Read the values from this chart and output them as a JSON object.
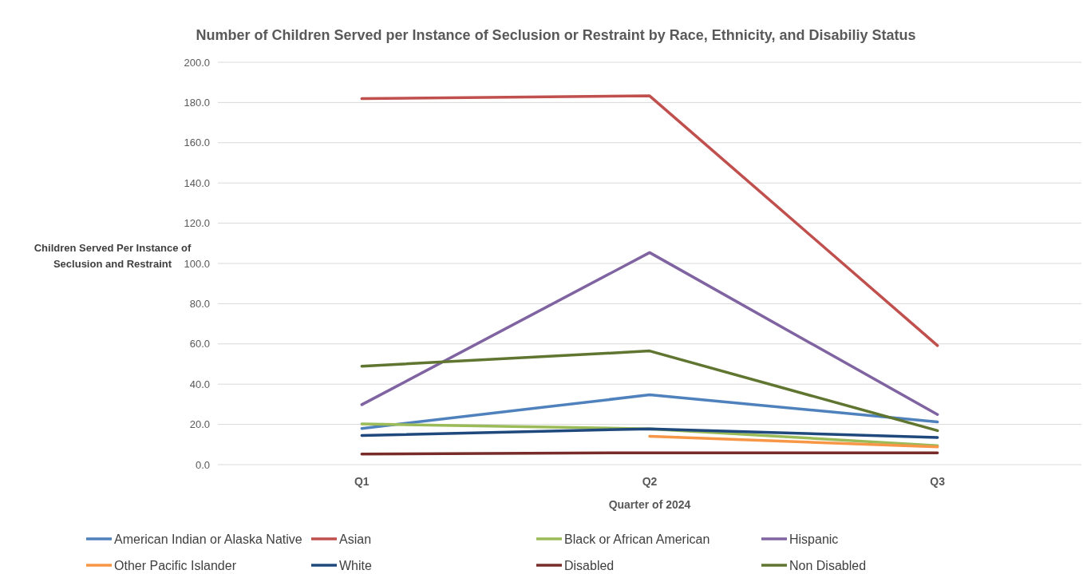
{
  "chart_data": {
    "type": "line",
    "title": "Number of Children Served per Instance of Seclusion or Restraint by Race, Ethnicity, and Disabiliy Status",
    "xlabel": "Quarter of 2024",
    "ylabel": "Children Served Per Instance of Seclusion and Restraint",
    "categories": [
      "Q1",
      "Q2",
      "Q3"
    ],
    "ylim": [
      0,
      200
    ],
    "yticks": [
      {
        "value": 0,
        "label": "0.0"
      },
      {
        "value": 20,
        "label": "20.0"
      },
      {
        "value": 40,
        "label": "40.0"
      },
      {
        "value": 60,
        "label": "60.0"
      },
      {
        "value": 80,
        "label": "80.0"
      },
      {
        "value": 100,
        "label": "100.0"
      },
      {
        "value": 120,
        "label": "120.0"
      },
      {
        "value": 140,
        "label": "140.0"
      },
      {
        "value": 160,
        "label": "160.0"
      },
      {
        "value": 180,
        "label": "180.0"
      },
      {
        "value": 200,
        "label": "200.0"
      }
    ],
    "grid": "y",
    "legend": "bottom",
    "marker": "none",
    "line_style": "solid",
    "series": [
      {
        "name": "American Indian or Alaska Native",
        "color": "#4f81bd",
        "values": [
          18.0,
          34.7,
          21.2
        ]
      },
      {
        "name": "Asian",
        "color": "#c0504d",
        "values": [
          181.9,
          183.3,
          59.2
        ]
      },
      {
        "name": "Black or African American",
        "color": "#9bbb59",
        "values": [
          20.2,
          17.8,
          9.4
        ]
      },
      {
        "name": "Hispanic",
        "color": "#8064a2",
        "values": [
          29.8,
          105.4,
          24.9
        ]
      },
      {
        "name": "Other Pacific Islander",
        "color": "#f79646",
        "values": [
          null,
          14.1,
          8.8
        ]
      },
      {
        "name": "White",
        "color": "#1f497d",
        "values": [
          14.5,
          17.8,
          13.5
        ]
      },
      {
        "name": "Disabled",
        "color": "#772c2a",
        "values": [
          5.3,
          5.9,
          5.9
        ]
      },
      {
        "name": "Non Disabled",
        "color": "#5f7530",
        "values": [
          48.9,
          56.5,
          16.9
        ]
      }
    ]
  }
}
